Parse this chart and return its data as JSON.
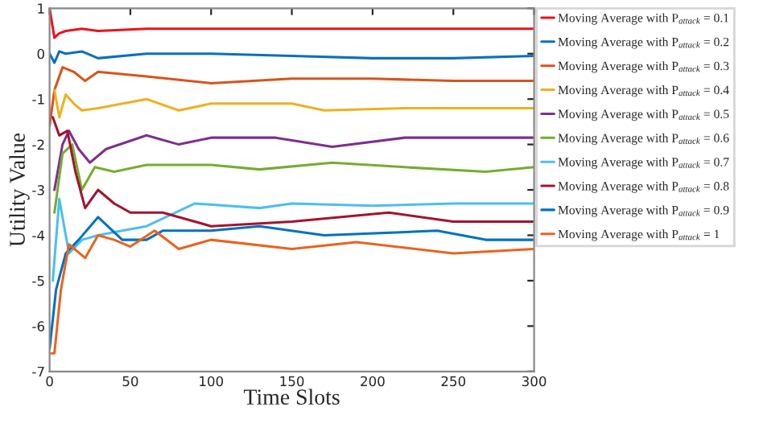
{
  "chart_data": {
    "type": "line",
    "xlabel": "Time Slots",
    "ylabel": "Utility Value",
    "xlim": [
      0,
      300
    ],
    "ylim": [
      -7,
      1
    ],
    "xticks": [
      0,
      50,
      100,
      150,
      200,
      250,
      300
    ],
    "yticks": [
      -7,
      -6,
      -5,
      -4,
      -3,
      -2,
      -1,
      0,
      1
    ],
    "grid": false,
    "legend": "right",
    "series": [
      {
        "name": "Moving Average with P$_{attack}$ = 0.1",
        "color": "#e8141c",
        "x": [
          0,
          3,
          6,
          10,
          20,
          30,
          60,
          100,
          150,
          200,
          250,
          300
        ],
        "values": [
          1,
          0.35,
          0.45,
          0.5,
          0.55,
          0.5,
          0.55,
          0.55,
          0.55,
          0.55,
          0.55,
          0.55
        ]
      },
      {
        "name": "Moving Average with P$_{attack}$ = 0.2",
        "color": "#0c6fbd",
        "x": [
          0,
          3,
          6,
          10,
          20,
          30,
          60,
          100,
          150,
          200,
          250,
          300
        ],
        "values": [
          0,
          -0.2,
          0.05,
          0,
          0.05,
          -0.1,
          0,
          0,
          -0.05,
          -0.1,
          -0.1,
          -0.05
        ]
      },
      {
        "name": "Moving Average with P$_{attack}$ = 0.3",
        "color": "#d9541a",
        "x": [
          0,
          3,
          8,
          15,
          22,
          30,
          60,
          100,
          150,
          200,
          250,
          300
        ],
        "values": [
          -1.6,
          -0.8,
          -0.3,
          -0.4,
          -0.6,
          -0.4,
          -0.5,
          -0.65,
          -0.55,
          -0.55,
          -0.6,
          -0.6
        ]
      },
      {
        "name": "Moving Average with P$_{attack}$ = 0.4",
        "color": "#edb120",
        "x": [
          3,
          6,
          10,
          15,
          20,
          30,
          60,
          80,
          100,
          150,
          170,
          220,
          300
        ],
        "values": [
          -0.8,
          -1.4,
          -0.9,
          -1.1,
          -1.25,
          -1.2,
          -1.0,
          -1.25,
          -1.1,
          -1.1,
          -1.25,
          -1.2,
          -1.2
        ]
      },
      {
        "name": "Moving Average with P$_{attack}$ = 0.5",
        "color": "#7e2f8e",
        "x": [
          3,
          8,
          12,
          18,
          25,
          35,
          60,
          80,
          100,
          140,
          175,
          220,
          300
        ],
        "values": [
          -3.0,
          -2.0,
          -1.7,
          -2.1,
          -2.4,
          -2.1,
          -1.8,
          -2.0,
          -1.85,
          -1.85,
          -2.05,
          -1.85,
          -1.85
        ]
      },
      {
        "name": "Moving Average with P$_{attack}$ = 0.6",
        "color": "#77ac30",
        "x": [
          3,
          8,
          14,
          20,
          28,
          40,
          60,
          100,
          130,
          175,
          220,
          270,
          300
        ],
        "values": [
          -3.5,
          -2.2,
          -2.0,
          -3.0,
          -2.5,
          -2.6,
          -2.45,
          -2.45,
          -2.55,
          -2.4,
          -2.5,
          -2.6,
          -2.5
        ]
      },
      {
        "name": "Moving Average with P$_{attack}$ = 0.7",
        "color": "#4dbeee",
        "x": [
          2,
          6,
          12,
          20,
          30,
          45,
          60,
          90,
          130,
          150,
          200,
          250,
          300
        ],
        "values": [
          -5.0,
          -3.2,
          -4.4,
          -4.1,
          -4.0,
          -3.9,
          -3.8,
          -3.3,
          -3.4,
          -3.3,
          -3.35,
          -3.3,
          -3.3
        ]
      },
      {
        "name": "Moving Average with P$_{attack}$ = 0.8",
        "color": "#a2142f",
        "x": [
          2,
          6,
          11,
          16,
          22,
          30,
          40,
          50,
          70,
          100,
          150,
          210,
          250,
          300
        ],
        "values": [
          -1.4,
          -1.8,
          -1.7,
          -2.6,
          -3.4,
          -3.0,
          -3.3,
          -3.5,
          -3.5,
          -3.8,
          -3.7,
          -3.5,
          -3.7,
          -3.7
        ]
      },
      {
        "name": "Moving Average with P$_{attack}$ = 0.9",
        "color": "#0072bd",
        "x": [
          0,
          4,
          10,
          18,
          30,
          45,
          60,
          70,
          100,
          130,
          170,
          240,
          270,
          300
        ],
        "values": [
          -6.5,
          -5.2,
          -4.4,
          -4.1,
          -3.6,
          -4.1,
          -4.1,
          -3.9,
          -3.9,
          -3.8,
          -4.0,
          -3.9,
          -4.1,
          -4.1
        ]
      },
      {
        "name": "Moving Average with P$_{attack}$ = 1",
        "color": "#e8641e",
        "x": [
          1,
          3,
          7,
          12,
          22,
          30,
          40,
          50,
          65,
          80,
          100,
          150,
          190,
          250,
          300
        ],
        "values": [
          -6.6,
          -6.6,
          -5.2,
          -4.2,
          -4.5,
          -4.0,
          -4.1,
          -4.25,
          -3.9,
          -4.3,
          -4.1,
          -4.3,
          -4.15,
          -4.4,
          -4.3
        ]
      }
    ]
  }
}
